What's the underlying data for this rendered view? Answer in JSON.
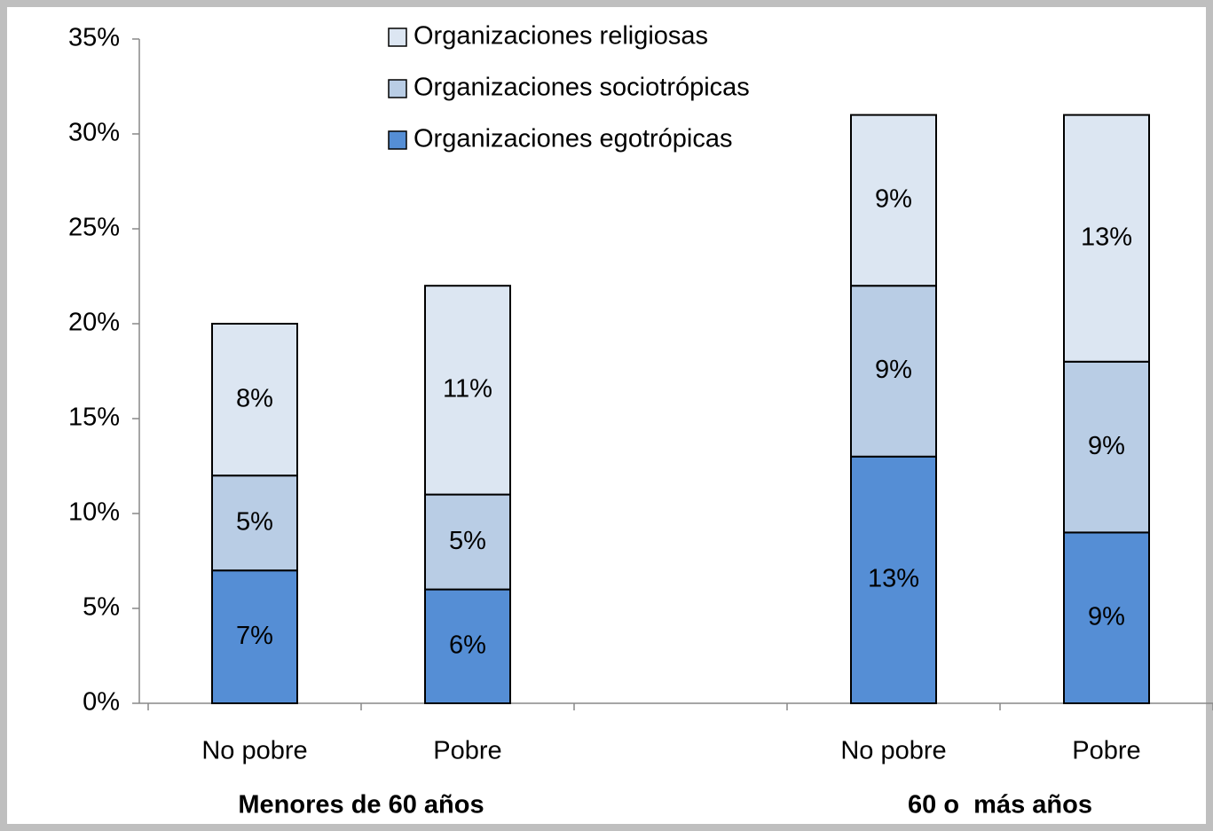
{
  "chart_data": {
    "type": "stacked_bar",
    "categories": [
      "No pobre",
      "Pobre",
      null,
      "No pobre",
      "Pobre"
    ],
    "group_labels": [
      "Menores de 60 años",
      "60 o  más años"
    ],
    "series": [
      {
        "name": "Organizaciones egotrópicas",
        "color": "#558ed5",
        "values": [
          7,
          6,
          null,
          13,
          9
        ],
        "value_labels": [
          "7%",
          "6%",
          null,
          "13%",
          "9%"
        ]
      },
      {
        "name": "Organizaciones sociotrópicas",
        "color": "#b9cde5",
        "values": [
          5,
          5,
          null,
          9,
          9
        ],
        "value_labels": [
          "5%",
          "5%",
          null,
          "9%",
          "9%"
        ]
      },
      {
        "name": "Organizaciones religiosas",
        "color": "#dce6f2",
        "values": [
          8,
          11,
          null,
          9,
          13
        ],
        "value_labels": [
          "8%",
          "11%",
          null,
          "9%",
          "13%"
        ]
      }
    ],
    "ylim": [
      0,
      35
    ],
    "yticks": [
      {
        "value": 0,
        "label": "0%"
      },
      {
        "value": 5,
        "label": "5%"
      },
      {
        "value": 10,
        "label": "10%"
      },
      {
        "value": 15,
        "label": "15%"
      },
      {
        "value": 20,
        "label": "20%"
      },
      {
        "value": 25,
        "label": "25%"
      },
      {
        "value": 30,
        "label": "30%"
      },
      {
        "value": 35,
        "label": "35%"
      }
    ],
    "legend": "top"
  }
}
